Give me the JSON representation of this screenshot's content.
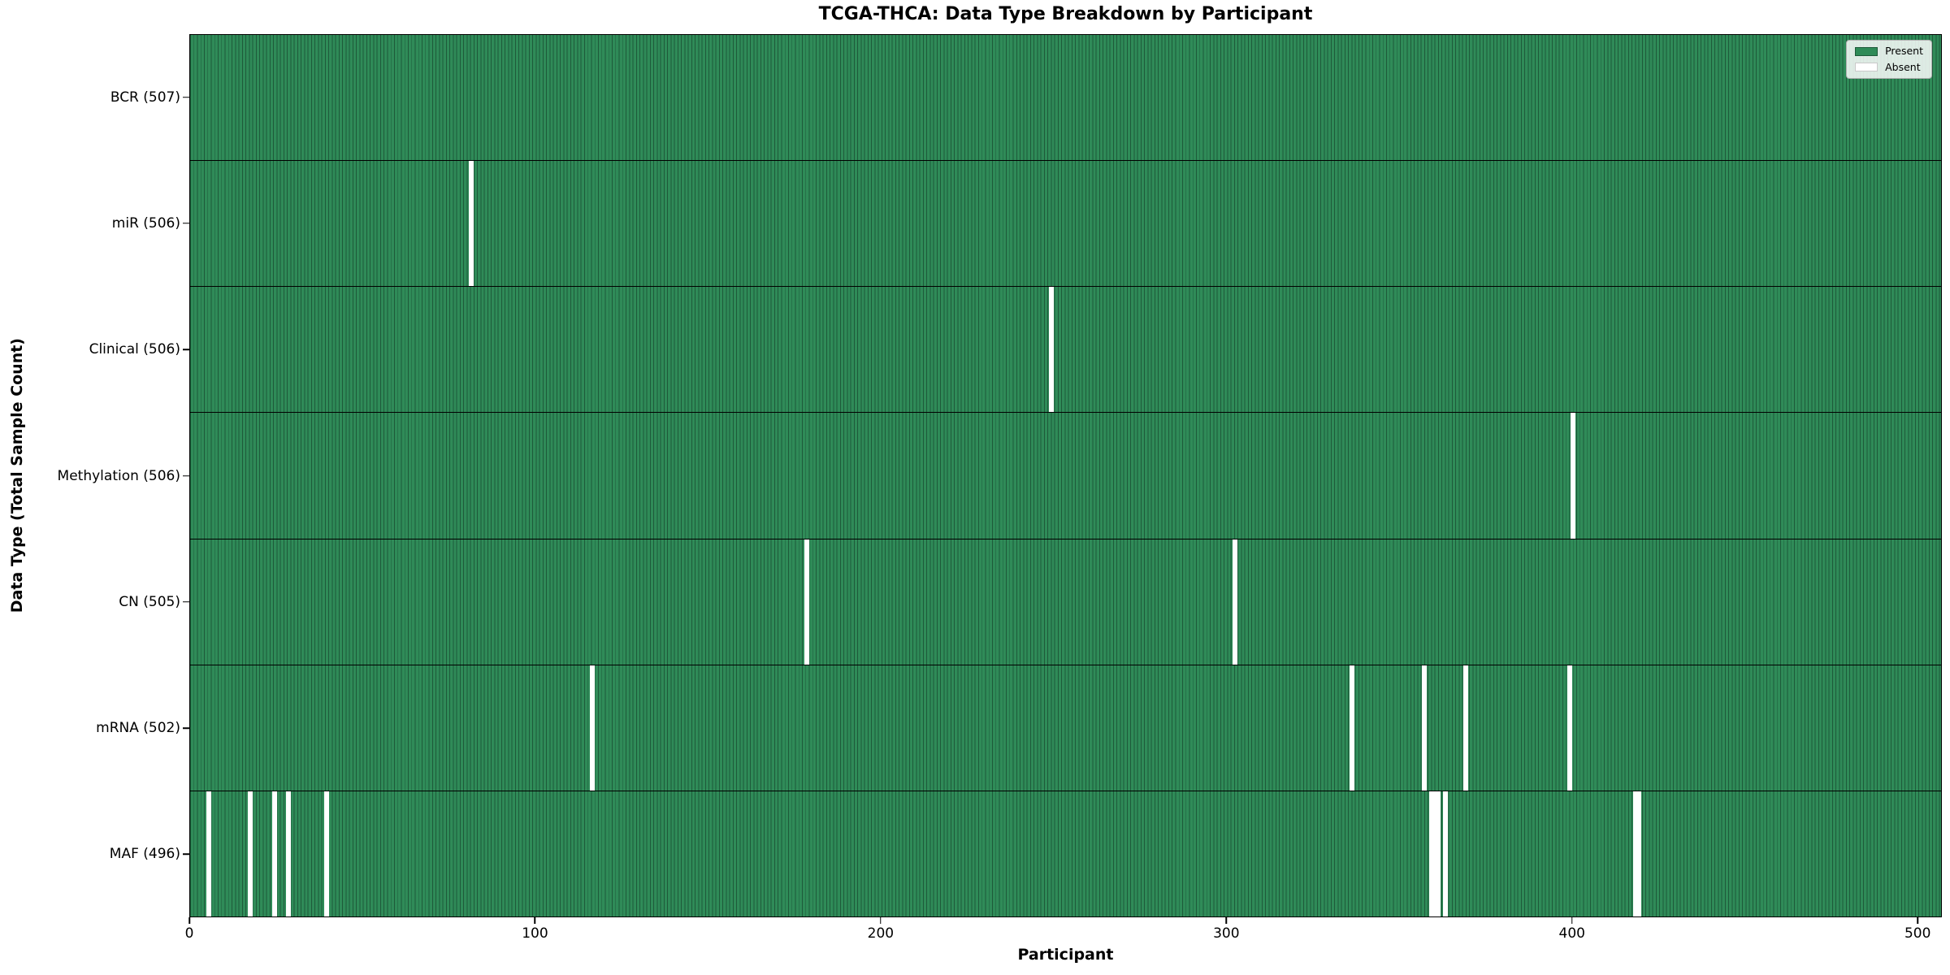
{
  "chart_data": {
    "type": "heatmap",
    "title": "TCGA-THCA: Data Type Breakdown by Participant",
    "xlabel": "Participant",
    "ylabel": "Data Type (Total Sample Count)",
    "legend_labels": [
      "Present",
      "Absent"
    ],
    "legend_position": "upper right",
    "grid": false,
    "total_participants": 507,
    "x_ticks": [
      0,
      100,
      200,
      300,
      400,
      500
    ],
    "xlim": [
      0,
      507
    ],
    "colors": {
      "present": "#2e8b57",
      "present_edge": "#1e5a3a",
      "absent": "#ffffff",
      "axis": "#000000",
      "legend_border": "#b0b0b0"
    },
    "rows": [
      {
        "name": "BCR",
        "label": "BCR (507)",
        "count": 507,
        "absent_participants": []
      },
      {
        "name": "miR",
        "label": "miR (506)",
        "count": 506,
        "absent_participants": [
          81
        ]
      },
      {
        "name": "Clinical",
        "label": "Clinical (506)",
        "count": 506,
        "absent_participants": [
          249
        ]
      },
      {
        "name": "Methylation",
        "label": "Methylation (506)",
        "count": 506,
        "absent_participants": [
          400
        ]
      },
      {
        "name": "CN",
        "label": "CN (505)",
        "count": 505,
        "absent_participants": [
          178,
          302
        ]
      },
      {
        "name": "mRNA",
        "label": "mRNA (502)",
        "count": 502,
        "absent_participants": [
          116,
          336,
          357,
          369,
          399
        ]
      },
      {
        "name": "MAF",
        "label": "MAF (496)",
        "count": 496,
        "absent_participants": [
          5,
          17,
          24,
          28,
          39,
          359,
          360,
          361,
          363,
          418,
          419
        ]
      }
    ]
  }
}
